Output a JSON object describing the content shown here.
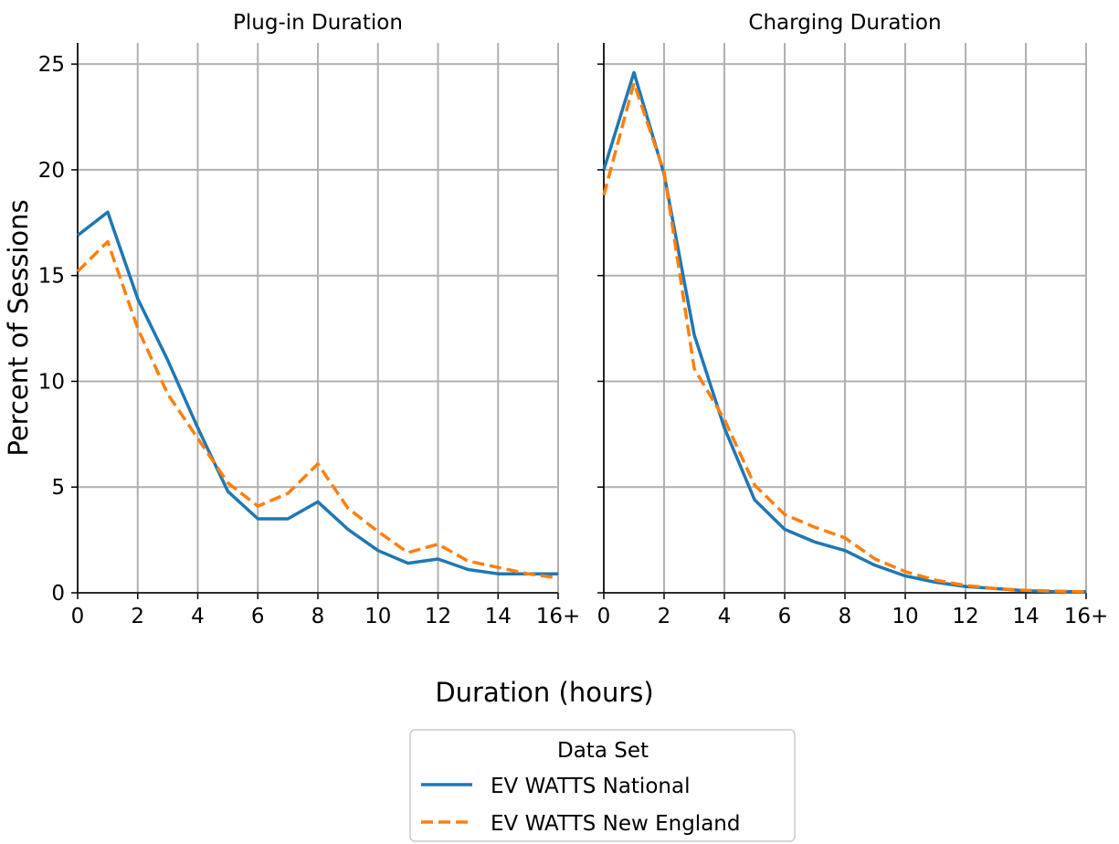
{
  "colors": {
    "national": "#1f77b4",
    "new_england": "#ff7f0e",
    "grid": "#b0b0b0",
    "axis": "#000000"
  },
  "labels": {
    "ylabel": "Percent of Sessions",
    "xlabel": "Duration (hours)",
    "legend_title": "Data Set"
  },
  "chart_data": [
    {
      "type": "line",
      "title": "Plug-in Duration",
      "x_ticks": [
        "0",
        "2",
        "4",
        "6",
        "8",
        "10",
        "12",
        "14",
        "16+"
      ],
      "y_ticks": [
        "0",
        "5",
        "10",
        "15",
        "20",
        "25"
      ],
      "xlim": [
        0,
        16
      ],
      "ylim": [
        0,
        26
      ],
      "grid": true,
      "x": [
        0,
        1,
        2,
        3,
        4,
        5,
        6,
        7,
        8,
        9,
        10,
        11,
        12,
        13,
        14,
        15,
        16
      ],
      "series": [
        {
          "name": "EV WATTS National",
          "line_style": "solid",
          "values": [
            16.9,
            18.0,
            13.9,
            11.0,
            7.8,
            4.8,
            3.5,
            3.5,
            4.3,
            3.0,
            2.0,
            1.4,
            1.6,
            1.1,
            0.9,
            0.9,
            0.9
          ]
        },
        {
          "name": "EV WATTS New England",
          "line_style": "dashed",
          "values": [
            15.2,
            16.6,
            12.5,
            9.4,
            7.3,
            5.2,
            4.1,
            4.7,
            6.1,
            4.0,
            2.9,
            1.9,
            2.3,
            1.5,
            1.2,
            0.9,
            0.7
          ]
        }
      ]
    },
    {
      "type": "line",
      "title": "Charging Duration",
      "x_ticks": [
        "0",
        "2",
        "4",
        "6",
        "8",
        "10",
        "12",
        "14",
        "16+"
      ],
      "y_ticks": [
        "0",
        "5",
        "10",
        "15",
        "20",
        "25"
      ],
      "xlim": [
        0,
        16
      ],
      "ylim": [
        0,
        26
      ],
      "grid": true,
      "x": [
        0,
        1,
        2,
        3,
        4,
        5,
        6,
        7,
        8,
        9,
        10,
        11,
        12,
        13,
        14,
        15,
        16
      ],
      "series": [
        {
          "name": "EV WATTS National",
          "line_style": "solid",
          "values": [
            20.0,
            24.6,
            19.8,
            12.2,
            7.8,
            4.4,
            3.0,
            2.4,
            2.0,
            1.3,
            0.8,
            0.5,
            0.3,
            0.2,
            0.1,
            0.05,
            0.05
          ]
        },
        {
          "name": "EV WATTS New England",
          "line_style": "dashed",
          "values": [
            18.8,
            24.1,
            19.9,
            10.6,
            8.2,
            5.1,
            3.7,
            3.1,
            2.6,
            1.6,
            1.0,
            0.6,
            0.35,
            0.2,
            0.12,
            0.08,
            0.05
          ]
        }
      ]
    }
  ],
  "legend": {
    "position": "bottom-center",
    "entries": [
      {
        "label": "EV WATTS National",
        "line_style": "solid"
      },
      {
        "label": "EV WATTS New England",
        "line_style": "dashed"
      }
    ]
  }
}
